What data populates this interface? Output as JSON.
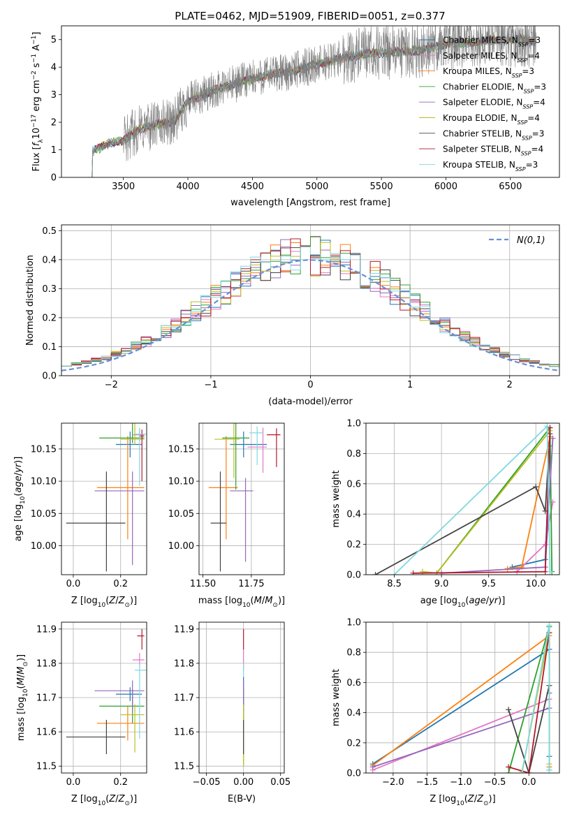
{
  "title": "PLATE=0462, MJD=51909, FIBERID=0051, z=0.377",
  "series": [
    {
      "name": "Chabrier MILES, N_SSP=3",
      "base": "Chabrier MILES, N",
      "sub": "SSP",
      "tail": "=3",
      "color": "#1f77b4"
    },
    {
      "name": "Salpeter MILES, N_SSP=4",
      "base": "Salpeter MILES, N",
      "sub": "SSP",
      "tail": "=4",
      "color": "#e377c2"
    },
    {
      "name": "Kroupa MILES, N_SSP=3",
      "base": "Kroupa MILES, N",
      "sub": "SSP",
      "tail": "=3",
      "color": "#ff7f0e"
    },
    {
      "name": "Chabrier ELODIE, N_SSP=3",
      "base": "Chabrier ELODIE, N",
      "sub": "SSP",
      "tail": "=3",
      "color": "#2ca02c"
    },
    {
      "name": "Salpeter ELODIE, N_SSP=4",
      "base": "Salpeter ELODIE, N",
      "sub": "SSP",
      "tail": "=4",
      "color": "#9467bd"
    },
    {
      "name": "Kroupa ELODIE, N_SSP=4",
      "base": "Kroupa ELODIE, N",
      "sub": "SSP",
      "tail": "=4",
      "color": "#bcbd22"
    },
    {
      "name": "Chabrier STELIB, N_SSP=3",
      "base": "Chabrier STELIB, N",
      "sub": "SSP",
      "tail": "=3",
      "color": "#444444"
    },
    {
      "name": "Salpeter STELIB, N_SSP=4",
      "base": "Salpeter STELIB, N",
      "sub": "SSP",
      "tail": "=4",
      "color": "#b2182b"
    },
    {
      "name": "Kroupa STELIB, N_SSP=3",
      "base": "Kroupa STELIB, N",
      "sub": "SSP",
      "tail": "=3",
      "color": "#80d8e0"
    }
  ],
  "chart_data": [
    {
      "id": "spectrum",
      "type": "line",
      "xlabel": "wavelength [Angstrom, rest frame]",
      "ylabel": "Flux [f_λ 10^-17 erg cm^-2 s^-1 A^-1]",
      "xlim": [
        3020,
        6880
      ],
      "ylim": [
        0,
        5.5
      ],
      "xticks": [
        3500,
        4000,
        4500,
        5000,
        5500,
        6000,
        6500
      ],
      "yticks": [
        0,
        1,
        2,
        3,
        4,
        5
      ],
      "data_color": "#7f7f7f",
      "data_start": 3220,
      "data_end": 6700,
      "continuum_x": [
        3220,
        3260,
        3400,
        3500,
        3620,
        3800,
        3900,
        4000,
        4200,
        4400,
        4600,
        4800,
        5000,
        5200,
        5400,
        5600,
        5800,
        6000,
        6200,
        6400,
        6600,
        6700
      ],
      "continuum_y": [
        0.0,
        0.95,
        1.25,
        1.32,
        1.75,
        1.95,
        2.05,
        2.75,
        3.15,
        3.45,
        3.7,
        3.85,
        4.1,
        4.35,
        4.5,
        4.55,
        4.6,
        4.85,
        4.9,
        5.0,
        5.0,
        4.95
      ],
      "grid": false,
      "legend": "top-right"
    },
    {
      "id": "residuals",
      "type": "bar",
      "xlabel": "(data-model)/error",
      "ylabel": "Normed distribution",
      "xlim": [
        -2.5,
        2.5
      ],
      "ylim": [
        0,
        0.52
      ],
      "xticks": [
        -2,
        -1,
        0,
        1,
        2
      ],
      "yticks": [
        0.0,
        0.1,
        0.2,
        0.3,
        0.4,
        0.5
      ],
      "bin_width": 0.1,
      "gaussian_label": "N(0,1)",
      "gaussian_color": "#6a8fd8",
      "grid": true,
      "legend": "top-right"
    },
    {
      "id": "age-vs-Z",
      "type": "scatter",
      "xlabel": "Z [log10(Z/Z⊙)]",
      "ylabel": "age  [log10(age/yr)]",
      "xlim": [
        -0.05,
        0.31
      ],
      "ylim": [
        9.955,
        10.19
      ],
      "xticks": [
        0.0,
        0.2
      ],
      "yticks": [
        10.0,
        10.05,
        10.1,
        10.15
      ],
      "points": [
        {
          "x": 0.24,
          "y": 10.157,
          "xerr": [
            0.06,
            0.05
          ],
          "yerr": [
            0.02,
            0.02
          ]
        },
        {
          "x": 0.28,
          "y": 10.172,
          "xerr": [
            0.03,
            0.02
          ],
          "yerr": [
            0.01,
            0.01
          ]
        },
        {
          "x": 0.23,
          "y": 10.09,
          "xerr": [
            0.13,
            0.07
          ],
          "yerr": [
            0.08,
            0.08
          ]
        },
        {
          "x": 0.25,
          "y": 10.167,
          "xerr": [
            0.14,
            0.05
          ],
          "yerr": [
            0.008,
            0.08
          ]
        },
        {
          "x": 0.25,
          "y": 10.085,
          "xerr": [
            0.16,
            0.05
          ],
          "yerr": [
            0.115,
            0.03
          ]
        },
        {
          "x": 0.26,
          "y": 10.165,
          "xerr": [
            0.06,
            0.04
          ],
          "yerr": [
            0.008,
            0.08
          ]
        },
        {
          "x": 0.14,
          "y": 10.035,
          "xerr": [
            0.17,
            0.08
          ],
          "yerr": [
            0.075,
            0.08
          ]
        },
        {
          "x": 0.29,
          "y": 10.17,
          "xerr": [
            0.01,
            0.01
          ],
          "yerr": [
            0.07,
            0.01
          ]
        },
        {
          "x": 0.28,
          "y": 10.173,
          "xerr": [
            0.02,
            0.03
          ],
          "yerr": [
            0.08,
            0.01
          ]
        }
      ]
    },
    {
      "id": "age-vs-mass",
      "type": "scatter",
      "xlabel": "mass [log10(M/M⊙)]",
      "ylabel": "",
      "xlim": [
        11.48,
        11.92
      ],
      "ylim": [
        9.955,
        10.19
      ],
      "xticks": [
        11.5,
        11.75
      ],
      "yticks": [
        10.0,
        10.05,
        10.1,
        10.15
      ],
      "points": [
        {
          "x": 11.71,
          "y": 10.157,
          "xerr": [
            0.07,
            0.12
          ],
          "yerr": [
            0.02,
            0.02
          ]
        },
        {
          "x": 11.81,
          "y": 10.153,
          "xerr": [
            0.08,
            0.02
          ],
          "yerr": [
            0.04,
            0.03
          ]
        },
        {
          "x": 11.62,
          "y": 10.09,
          "xerr": [
            0.09,
            0.06
          ],
          "yerr": [
            0.08,
            0.08
          ]
        },
        {
          "x": 11.67,
          "y": 10.167,
          "xerr": [
            0.07,
            0.07
          ],
          "yerr": [
            0.08,
            0.05
          ]
        },
        {
          "x": 11.72,
          "y": 10.085,
          "xerr": [
            0.08,
            0.04
          ],
          "yerr": [
            0.11,
            0.02
          ]
        },
        {
          "x": 11.66,
          "y": 10.165,
          "xerr": [
            0.1,
            0.03
          ],
          "yerr": [
            0.06,
            0.05
          ]
        },
        {
          "x": 11.59,
          "y": 10.035,
          "xerr": [
            0.05,
            0.03
          ],
          "yerr": [
            0.075,
            0.08
          ]
        },
        {
          "x": 11.88,
          "y": 10.172,
          "xerr": [
            0.05,
            0.02
          ],
          "yerr": [
            0.05,
            0.01
          ]
        },
        {
          "x": 11.78,
          "y": 10.175,
          "xerr": [
            0.04,
            0.03
          ],
          "yerr": [
            0.05,
            0.01
          ]
        }
      ]
    },
    {
      "id": "weight-vs-age",
      "type": "line",
      "xlabel": "age  [log10(age/yr)]",
      "ylabel": "mass weight",
      "xlim": [
        8.2,
        10.25
      ],
      "ylim": [
        0,
        1
      ],
      "xticks": [
        8.5,
        9.0,
        9.5,
        10.0
      ],
      "yticks": [
        0.0,
        0.2,
        0.4,
        0.6,
        0.8,
        1.0
      ],
      "lines": [
        {
          "x": [
            9.75,
            10.1,
            10.15
          ],
          "y": [
            0.05,
            0.1,
            0.85
          ]
        },
        {
          "x": [
            9.8,
            10.1,
            10.18
          ],
          "y": [
            0.02,
            0.2,
            0.48
          ]
        },
        {
          "x": [
            9.7,
            9.85,
            10.15
          ],
          "y": [
            0.04,
            0.05,
            0.91
          ]
        },
        {
          "x": [
            8.95,
            10.15,
            10.17
          ],
          "y": [
            0.01,
            0.97,
            0.02
          ]
        },
        {
          "x": [
            9.0,
            10.1,
            10.18
          ],
          "y": [
            0.01,
            0.05,
            0.9
          ]
        },
        {
          "x": [
            8.8,
            8.95,
            10.15
          ],
          "y": [
            0.02,
            0.01,
            0.95
          ]
        },
        {
          "x": [
            8.3,
            10.0,
            10.1,
            10.15
          ],
          "y": [
            0.0,
            0.58,
            0.42,
            0.93
          ]
        },
        {
          "x": [
            8.7,
            10.1,
            10.15
          ],
          "y": [
            0.01,
            0.02,
            0.97
          ]
        },
        {
          "x": [
            8.5,
            10.12,
            10.15
          ],
          "y": [
            0.0,
            0.98,
            0.02
          ]
        }
      ]
    },
    {
      "id": "mass-vs-Z",
      "type": "scatter",
      "xlabel": "Z [log10(Z/Z⊙)]",
      "ylabel": "mass [log10(M/M⊙)]",
      "xlim": [
        -0.05,
        0.31
      ],
      "ylim": [
        11.48,
        11.92
      ],
      "xticks": [
        0.0,
        0.2
      ],
      "yticks": [
        11.5,
        11.6,
        11.7,
        11.8,
        11.9
      ],
      "points": [
        {
          "x": 0.24,
          "y": 11.71,
          "xerr": [
            0.06,
            0.05
          ],
          "yerr": [
            0.02,
            0.02
          ]
        },
        {
          "x": 0.28,
          "y": 11.81,
          "xerr": [
            0.03,
            0.02
          ],
          "yerr": [
            0.02,
            0.02
          ]
        },
        {
          "x": 0.23,
          "y": 11.625,
          "xerr": [
            0.13,
            0.07
          ],
          "yerr": [
            0.05,
            0.05
          ]
        },
        {
          "x": 0.25,
          "y": 11.675,
          "xerr": [
            0.14,
            0.05
          ],
          "yerr": [
            0.05,
            0.05
          ]
        },
        {
          "x": 0.25,
          "y": 11.72,
          "xerr": [
            0.16,
            0.05
          ],
          "yerr": [
            0.06,
            0.03
          ]
        },
        {
          "x": 0.26,
          "y": 11.65,
          "xerr": [
            0.06,
            0.04
          ],
          "yerr": [
            0.11,
            0.03
          ]
        },
        {
          "x": 0.14,
          "y": 11.585,
          "xerr": [
            0.17,
            0.08
          ],
          "yerr": [
            0.05,
            0.05
          ]
        },
        {
          "x": 0.29,
          "y": 11.88,
          "xerr": [
            0.02,
            0.01
          ],
          "yerr": [
            0.04,
            0.02
          ]
        },
        {
          "x": 0.28,
          "y": 11.78,
          "xerr": [
            0.02,
            0.03
          ],
          "yerr": [
            0.2,
            0.02
          ]
        }
      ]
    },
    {
      "id": "mass-vs-ebv",
      "type": "scatter",
      "xlabel": "E(B-V)",
      "ylabel": "",
      "xlim": [
        -0.06,
        0.055
      ],
      "ylim": [
        11.48,
        11.92
      ],
      "xticks": [
        -0.05,
        0.0,
        0.05
      ],
      "yticks": [
        11.5,
        11.6,
        11.7,
        11.8,
        11.9
      ],
      "points": [
        {
          "x": 0.0,
          "y": 11.71,
          "xerr": [
            0,
            0
          ],
          "yerr": [
            0.05,
            0.05
          ]
        },
        {
          "x": 0.0,
          "y": 11.81,
          "xerr": [
            0,
            0
          ],
          "yerr": [
            0.03,
            0.03
          ]
        },
        {
          "x": 0.0,
          "y": 11.625,
          "xerr": [
            0,
            0
          ],
          "yerr": [
            0.12,
            0.05
          ]
        },
        {
          "x": 0.0,
          "y": 11.675,
          "xerr": [
            0,
            0
          ],
          "yerr": [
            0.05,
            0.05
          ]
        },
        {
          "x": 0.0,
          "y": 11.72,
          "xerr": [
            0,
            0
          ],
          "yerr": [
            0.06,
            0.03
          ]
        },
        {
          "x": 0.0,
          "y": 11.65,
          "xerr": [
            0,
            0
          ],
          "yerr": [
            0.15,
            0.03
          ]
        },
        {
          "x": 0.0,
          "y": 11.585,
          "xerr": [
            0,
            0
          ],
          "yerr": [
            0.05,
            0.05
          ]
        },
        {
          "x": 0.0,
          "y": 11.88,
          "xerr": [
            0,
            0
          ],
          "yerr": [
            0.04,
            0.02
          ]
        },
        {
          "x": 0.0,
          "y": 11.78,
          "xerr": [
            0,
            0
          ],
          "yerr": [
            0.02,
            0.02
          ]
        }
      ]
    },
    {
      "id": "weight-vs-Z",
      "type": "line",
      "xlabel": "Z [log10(Z/Z⊙)]",
      "ylabel": "mass weight",
      "xlim": [
        -2.4,
        0.45
      ],
      "ylim": [
        0,
        1
      ],
      "xticks": [
        -2.0,
        -1.5,
        -1.0,
        -0.5,
        0.0
      ],
      "yticks": [
        0.0,
        0.2,
        0.4,
        0.6,
        0.8,
        1.0
      ],
      "lines": [
        {
          "x": [
            -2.3,
            0.3,
            0.3
          ],
          "y": [
            0.06,
            0.82,
            0.11
          ]
        },
        {
          "x": [
            -2.3,
            0.3,
            0.3
          ],
          "y": [
            0.02,
            0.49,
            0.49
          ]
        },
        {
          "x": [
            -2.3,
            0.3,
            0.3
          ],
          "y": [
            0.05,
            0.91,
            0.04
          ]
        },
        {
          "x": [
            -0.3,
            0.3,
            0.3
          ],
          "y": [
            0.0,
            0.97,
            0.02
          ]
        },
        {
          "x": [
            -2.3,
            0.3,
            0.3
          ],
          "y": [
            0.04,
            0.43,
            0.53
          ]
        },
        {
          "x": [
            -0.1,
            0.3,
            0.3
          ],
          "y": [
            0.01,
            0.93,
            0.06
          ]
        },
        {
          "x": [
            -0.3,
            0.0,
            0.3
          ],
          "y": [
            0.42,
            0.0,
            0.58
          ]
        },
        {
          "x": [
            -0.3,
            0.0,
            0.3
          ],
          "y": [
            0.04,
            0.0,
            0.93
          ]
        },
        {
          "x": [
            -0.1,
            0.3,
            0.3
          ],
          "y": [
            0.0,
            0.98,
            0.02
          ]
        }
      ]
    }
  ]
}
